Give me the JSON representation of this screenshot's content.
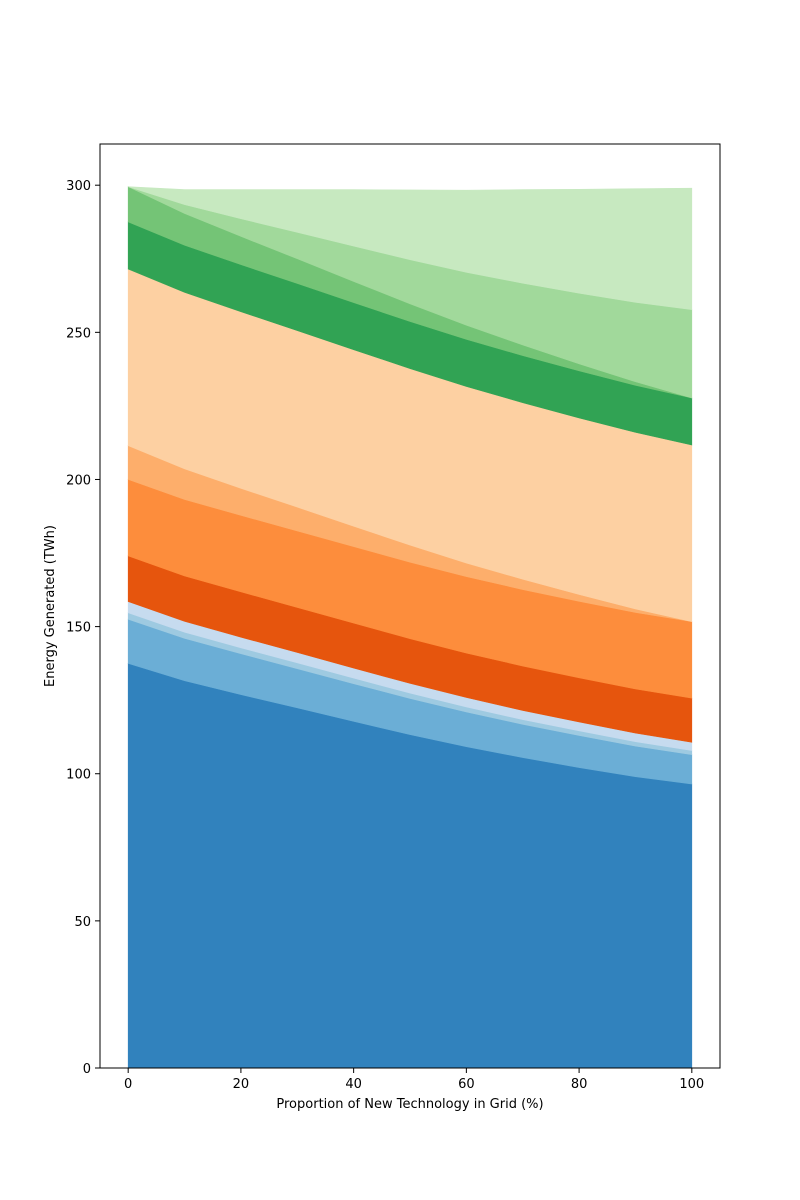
{
  "chart_data": {
    "type": "area",
    "stacked": true,
    "xlabel": "Proportion of New Technology in Grid (%)",
    "ylabel": "Energy Generated (TWh)",
    "xlim": [
      -5,
      105
    ],
    "ylim": [
      0,
      314
    ],
    "x_ticks": [
      0,
      20,
      40,
      60,
      80,
      100
    ],
    "y_ticks": [
      0,
      50,
      100,
      150,
      200,
      250,
      300
    ],
    "grid": false,
    "legend": "none",
    "x": [
      0,
      10,
      20,
      30,
      40,
      50,
      60,
      70,
      80,
      90,
      100
    ],
    "series": [
      {
        "color": "#3182bd",
        "values": [
          137.5,
          131.6,
          126.9,
          122.4,
          117.8,
          113.3,
          109.2,
          105.5,
          102.1,
          99.0,
          96.5
        ]
      },
      {
        "color": "#6baed6",
        "values": [
          15.0,
          14.4,
          13.9,
          13.3,
          12.8,
          12.3,
          11.8,
          11.3,
          10.9,
          10.4,
          10.0
        ]
      },
      {
        "color": "#9ecae1",
        "values": [
          2.2,
          2.1,
          2.0,
          2.0,
          1.9,
          1.8,
          1.7,
          1.6,
          1.6,
          1.5,
          1.4
        ]
      },
      {
        "color": "#c6dbef",
        "values": [
          3.8,
          3.7,
          3.6,
          3.5,
          3.4,
          3.3,
          3.2,
          3.1,
          3.0,
          2.9,
          2.8
        ]
      },
      {
        "color": "#e6550d",
        "values": [
          15.5,
          15.4,
          15.4,
          15.3,
          15.3,
          15.2,
          15.1,
          15.1,
          15.0,
          15.0,
          15.0
        ]
      },
      {
        "color": "#fd8d3c",
        "values": [
          26.0,
          26.0,
          26.0,
          26.0,
          26.0,
          26.0,
          26.0,
          26.0,
          26.0,
          26.0,
          26.0
        ]
      },
      {
        "color": "#fdae6b",
        "values": [
          11.5,
          10.4,
          9.2,
          8.1,
          6.9,
          5.8,
          4.6,
          3.5,
          2.3,
          1.2,
          0.0
        ]
      },
      {
        "color": "#fdd0a2",
        "values": [
          60.0,
          60.0,
          60.0,
          60.0,
          60.0,
          60.0,
          60.0,
          60.0,
          60.0,
          60.0,
          60.0
        ]
      },
      {
        "color": "#31a354",
        "values": [
          16.0,
          16.0,
          16.0,
          16.0,
          16.0,
          16.0,
          16.0,
          16.0,
          16.0,
          16.0,
          16.0
        ]
      },
      {
        "color": "#74c476",
        "values": [
          12.0,
          10.8,
          9.6,
          8.4,
          7.2,
          6.0,
          4.8,
          3.6,
          2.4,
          1.2,
          0.0
        ]
      },
      {
        "color": "#a1d99b",
        "values": [
          0.0,
          3.0,
          6.0,
          9.0,
          12.0,
          15.0,
          18.0,
          21.0,
          24.0,
          27.0,
          30.0
        ]
      },
      {
        "color": "#c7e9c0",
        "values": [
          0.0,
          5.1,
          9.9,
          14.5,
          19.2,
          23.7,
          27.9,
          31.8,
          35.3,
          38.6,
          41.3
        ]
      }
    ]
  }
}
